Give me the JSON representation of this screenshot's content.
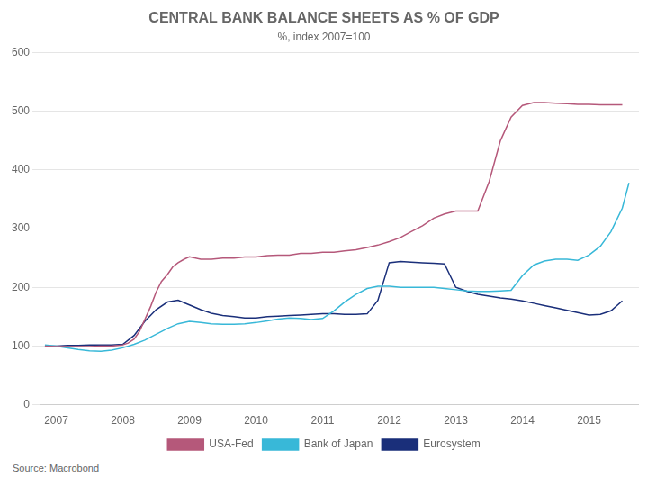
{
  "chart_data": {
    "type": "line",
    "title": "CENTRAL BANK BALANCE SHEETS AS % OF GDP",
    "subtitle": "%, index 2007=100",
    "source": "Source: Macrobond",
    "xlim": [
      2006.75,
      2015.75
    ],
    "xticks": [
      2007,
      2008,
      2009,
      2010,
      2011,
      2012,
      2013,
      2014,
      2015
    ],
    "ylim": [
      0,
      600
    ],
    "yticks": [
      0,
      100,
      200,
      300,
      400,
      500,
      600
    ],
    "grid": "y",
    "legend": "bottom",
    "series": [
      {
        "name": "USA-Fed",
        "color": "#b5587a",
        "x": [
          2006.83,
          2007.0,
          2007.17,
          2007.33,
          2007.5,
          2007.67,
          2007.83,
          2008.0,
          2008.08,
          2008.17,
          2008.25,
          2008.33,
          2008.42,
          2008.5,
          2008.58,
          2008.67,
          2008.75,
          2008.83,
          2008.92,
          2009.0,
          2009.17,
          2009.33,
          2009.5,
          2009.67,
          2009.83,
          2010.0,
          2010.17,
          2010.33,
          2010.5,
          2010.67,
          2010.83,
          2011.0,
          2011.17,
          2011.33,
          2011.5,
          2011.67,
          2011.83,
          2012.0,
          2012.17,
          2012.33,
          2012.5,
          2012.67,
          2012.83,
          2013.0,
          2013.17,
          2013.33,
          2013.5,
          2013.67,
          2013.83,
          2014.0,
          2014.17,
          2014.33,
          2014.5,
          2014.67,
          2014.83,
          2015.0,
          2015.17,
          2015.33,
          2015.5
        ],
        "values": [
          100,
          99,
          99,
          99,
          99,
          100,
          100,
          102,
          105,
          112,
          125,
          145,
          168,
          192,
          210,
          222,
          235,
          242,
          248,
          252,
          248,
          248,
          250,
          250,
          252,
          252,
          254,
          255,
          255,
          258,
          258,
          260,
          260,
          262,
          264,
          268,
          272,
          278,
          285,
          295,
          305,
          318,
          325,
          330,
          330,
          330,
          380,
          450,
          490,
          510,
          515,
          515,
          514,
          513,
          512,
          512,
          511,
          511,
          511
        ]
      },
      {
        "name": "Bank of Japan",
        "color": "#38b8d8",
        "x": [
          2006.83,
          2007.0,
          2007.17,
          2007.33,
          2007.5,
          2007.67,
          2007.83,
          2008.0,
          2008.17,
          2008.33,
          2008.5,
          2008.67,
          2008.83,
          2009.0,
          2009.17,
          2009.33,
          2009.5,
          2009.67,
          2009.83,
          2010.0,
          2010.17,
          2010.33,
          2010.5,
          2010.67,
          2010.83,
          2011.0,
          2011.17,
          2011.33,
          2011.5,
          2011.67,
          2011.83,
          2012.0,
          2012.17,
          2012.33,
          2012.5,
          2012.67,
          2012.83,
          2013.0,
          2013.17,
          2013.33,
          2013.5,
          2013.67,
          2013.83,
          2014.0,
          2014.17,
          2014.33,
          2014.5,
          2014.67,
          2014.83,
          2015.0,
          2015.17,
          2015.33,
          2015.5,
          2015.6
        ],
        "values": [
          102,
          100,
          97,
          94,
          92,
          91,
          93,
          97,
          103,
          110,
          120,
          130,
          138,
          142,
          140,
          138,
          137,
          137,
          138,
          140,
          143,
          146,
          148,
          147,
          145,
          147,
          160,
          175,
          188,
          198,
          202,
          202,
          200,
          200,
          200,
          200,
          198,
          196,
          194,
          193,
          193,
          194,
          195,
          220,
          238,
          245,
          248,
          248,
          246,
          255,
          270,
          295,
          335,
          378
        ]
      },
      {
        "name": "Eurosystem",
        "color": "#1a2f7a",
        "x": [
          2006.83,
          2007.0,
          2007.17,
          2007.33,
          2007.5,
          2007.67,
          2007.83,
          2008.0,
          2008.17,
          2008.33,
          2008.5,
          2008.67,
          2008.83,
          2009.0,
          2009.17,
          2009.33,
          2009.5,
          2009.67,
          2009.83,
          2010.0,
          2010.17,
          2010.33,
          2010.5,
          2010.67,
          2010.83,
          2011.0,
          2011.17,
          2011.33,
          2011.5,
          2011.67,
          2011.83,
          2012.0,
          2012.17,
          2012.33,
          2012.5,
          2012.67,
          2012.83,
          2013.0,
          2013.17,
          2013.33,
          2013.5,
          2013.67,
          2013.83,
          2014.0,
          2014.17,
          2014.33,
          2014.5,
          2014.67,
          2014.83,
          2015.0,
          2015.17,
          2015.33,
          2015.5
        ],
        "values": [
          100,
          100,
          101,
          101,
          102,
          102,
          102,
          103,
          118,
          142,
          162,
          175,
          178,
          170,
          162,
          156,
          152,
          150,
          148,
          148,
          150,
          151,
          152,
          153,
          154,
          155,
          155,
          154,
          154,
          155,
          178,
          242,
          244,
          243,
          242,
          241,
          240,
          200,
          193,
          188,
          185,
          182,
          180,
          177,
          173,
          169,
          165,
          161,
          157,
          153,
          154,
          160,
          177
        ]
      }
    ]
  }
}
